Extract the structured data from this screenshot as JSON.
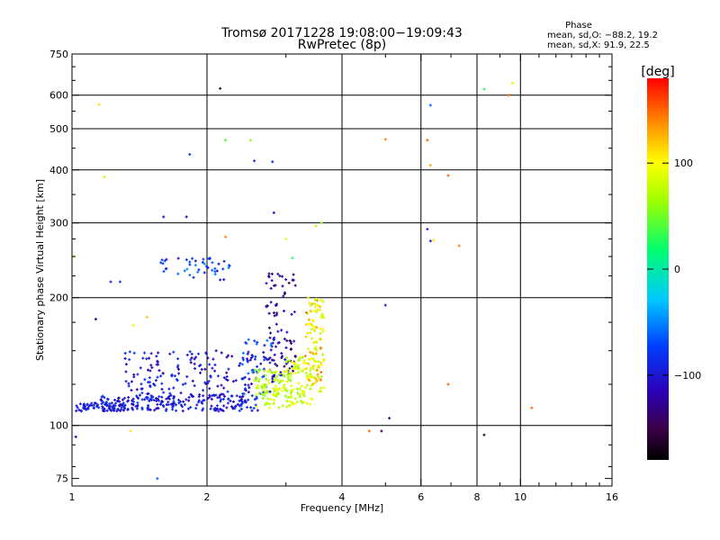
{
  "header": {
    "title_line1": "Tromsø 20171228 19:08:00−19:09:43",
    "title_line2": "RwPretec (8p)"
  },
  "phase_info": {
    "label": "Phase",
    "o_line": "mean, sd,O: −88.2, 19.2",
    "x_line": "mean, sd,X:  91.9, 22.5"
  },
  "colorbar": {
    "unit_label": "[deg]",
    "min": -180,
    "max": 180,
    "tick_values": [
      100,
      0,
      -100
    ],
    "tick_labels": [
      "100",
      "0",
      "−100"
    ]
  },
  "chart_data": {
    "type": "scatter",
    "title": "Tromsø 20171228 19:08:00−19:09:43",
    "subtitle": "RwPretec (8p)",
    "xlabel": "Frequency [MHz]",
    "ylabel": "Stationary phase Virtual Height [km]",
    "x_scale": "log",
    "y_scale": "log",
    "xlim": [
      1,
      16
    ],
    "ylim": [
      72,
      750
    ],
    "x_major_ticks": [
      1,
      2,
      4,
      8,
      16
    ],
    "x_minor_ticks": [
      6,
      10
    ],
    "x_tick_labels": [
      "1",
      "2",
      "4",
      "6",
      "8",
      "10",
      "16"
    ],
    "y_ticks": [
      75,
      100,
      200,
      300,
      400,
      500,
      600,
      750
    ],
    "y_tick_labels": [
      "75",
      "100",
      "200",
      "300",
      "400",
      "500",
      "600",
      "750"
    ],
    "x_gridlines": [
      2,
      4,
      6,
      8,
      10
    ],
    "y_gridlines": [
      100,
      200,
      300,
      400,
      500,
      600
    ],
    "grid": true,
    "colormap": "rainbow (black→purple→blue→cyan→green→yellow→red)",
    "color_variable": "phase [deg]",
    "series": [
      {
        "name": "O",
        "marker": "cross",
        "clusters": [
          {
            "x": [
              1.02,
              1.32
            ],
            "y": [
              108,
              113
            ],
            "phase": [
              -110,
              -80
            ],
            "n": 70
          },
          {
            "x": [
              1.15,
              2.6
            ],
            "y": [
              108,
              118
            ],
            "phase": [
              -120,
              -70
            ],
            "n": 200
          },
          {
            "x": [
              1.3,
              2.6
            ],
            "y": [
              114,
              150
            ],
            "phase": [
              -125,
              -75
            ],
            "n": 170
          },
          {
            "x": [
              1.55,
              2.25
            ],
            "y": [
              220,
              248
            ],
            "phase": [
              -110,
              -45
            ],
            "n": 45
          },
          {
            "x": [
              2.7,
              3.15
            ],
            "y": [
              130,
              230
            ],
            "phase": [
              -150,
              -95
            ],
            "n": 90
          },
          {
            "x": [
              2.4,
              2.85
            ],
            "y": [
              118,
              160
            ],
            "phase": [
              -120,
              -50
            ],
            "n": 55
          }
        ],
        "points": [
          {
            "x": 1.13,
            "y": 178,
            "phase": -110
          },
          {
            "x": 1.22,
            "y": 218,
            "phase": -95
          },
          {
            "x": 1.28,
            "y": 218,
            "phase": -80
          },
          {
            "x": 1.6,
            "y": 310,
            "phase": -100
          },
          {
            "x": 1.8,
            "y": 310,
            "phase": -120
          },
          {
            "x": 1.83,
            "y": 435,
            "phase": -80
          },
          {
            "x": 2.14,
            "y": 622,
            "phase": -150
          },
          {
            "x": 2.55,
            "y": 420,
            "phase": -90
          },
          {
            "x": 2.8,
            "y": 418,
            "phase": -90
          },
          {
            "x": 2.82,
            "y": 317,
            "phase": -105
          },
          {
            "x": 5.0,
            "y": 192,
            "phase": -100
          },
          {
            "x": 5.1,
            "y": 104,
            "phase": -140
          },
          {
            "x": 6.2,
            "y": 290,
            "phase": -95
          },
          {
            "x": 6.3,
            "y": 272,
            "phase": -95
          },
          {
            "x": 6.3,
            "y": 568,
            "phase": -60
          },
          {
            "x": 8.3,
            "y": 95,
            "phase": -160
          },
          {
            "x": 4.9,
            "y": 97,
            "phase": -150
          },
          {
            "x": 1.02,
            "y": 94,
            "phase": -110
          },
          {
            "x": 1.55,
            "y": 75,
            "phase": -60
          },
          {
            "x": 1.05,
            "y": 108,
            "phase": -95
          }
        ]
      },
      {
        "name": "X",
        "marker": "cross",
        "clusters": [
          {
            "x": [
              2.55,
              3.1
            ],
            "y": [
              110,
              135
            ],
            "phase": [
              55,
              100
            ],
            "n": 110
          },
          {
            "x": [
              3.0,
              3.45
            ],
            "y": [
              112,
              145
            ],
            "phase": [
              60,
              105
            ],
            "n": 80
          },
          {
            "x": [
              3.35,
              3.65
            ],
            "y": [
              120,
              200
            ],
            "phase": [
              70,
              110
            ],
            "n": 85
          },
          {
            "x": [
              3.3,
              3.6
            ],
            "y": [
              125,
              200
            ],
            "phase": [
              110,
              150
            ],
            "n": 35
          }
        ],
        "points": [
          {
            "x": 1.15,
            "y": 570,
            "phase": 110
          },
          {
            "x": 1.18,
            "y": 385,
            "phase": 80
          },
          {
            "x": 1.01,
            "y": 250,
            "phase": 85
          },
          {
            "x": 1.47,
            "y": 180,
            "phase": 120
          },
          {
            "x": 1.37,
            "y": 172,
            "phase": 95
          },
          {
            "x": 1.35,
            "y": 97,
            "phase": 110
          },
          {
            "x": 2.2,
            "y": 470,
            "phase": 40
          },
          {
            "x": 2.5,
            "y": 470,
            "phase": 60
          },
          {
            "x": 2.2,
            "y": 278,
            "phase": 140
          },
          {
            "x": 3.0,
            "y": 275,
            "phase": 90
          },
          {
            "x": 3.1,
            "y": 248,
            "phase": 30
          },
          {
            "x": 3.5,
            "y": 295,
            "phase": 75
          },
          {
            "x": 3.6,
            "y": 300,
            "phase": 55
          },
          {
            "x": 5.0,
            "y": 472,
            "phase": 140
          },
          {
            "x": 6.2,
            "y": 470,
            "phase": 150
          },
          {
            "x": 6.3,
            "y": 410,
            "phase": 130
          },
          {
            "x": 6.4,
            "y": 273,
            "phase": 110
          },
          {
            "x": 6.9,
            "y": 388,
            "phase": 150
          },
          {
            "x": 7.3,
            "y": 265,
            "phase": 140
          },
          {
            "x": 6.9,
            "y": 125,
            "phase": 150
          },
          {
            "x": 4.6,
            "y": 97,
            "phase": 150
          },
          {
            "x": 8.3,
            "y": 620,
            "phase": 30
          },
          {
            "x": 9.4,
            "y": 600,
            "phase": 150
          },
          {
            "x": 9.6,
            "y": 640,
            "phase": 85
          },
          {
            "x": 10.6,
            "y": 110,
            "phase": 150
          }
        ]
      }
    ]
  }
}
